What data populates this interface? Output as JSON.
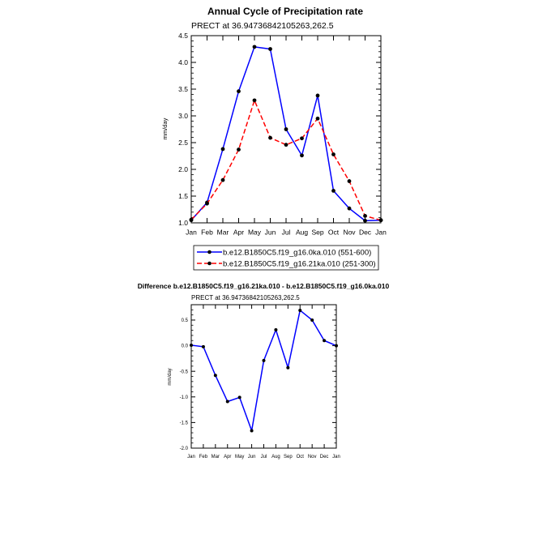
{
  "chart_data": [
    {
      "type": "line",
      "title": "Annual Cycle of Precipitation rate",
      "subtitle": "PRECT at 36.94736842105263,262.5",
      "xlabel": "",
      "ylabel": "mm/day",
      "categories": [
        "Jan",
        "Feb",
        "Mar",
        "Apr",
        "May",
        "Jun",
        "Jul",
        "Aug",
        "Sep",
        "Oct",
        "Nov",
        "Dec",
        "Jan"
      ],
      "ylim": [
        1.0,
        4.5
      ],
      "yticks": [
        "1.0",
        "1.5",
        "2.0",
        "2.5",
        "3.0",
        "3.5",
        "4.0",
        "4.5"
      ],
      "grid": false,
      "legend_position": "bottom",
      "series": [
        {
          "name": "b.e12.B1850C5.f19_g16.0ka.010 (551-600)",
          "color": "#0000ff",
          "dash": "solid",
          "marker_color": "#000000",
          "values": [
            1.05,
            1.38,
            2.38,
            3.46,
            4.29,
            4.25,
            2.75,
            2.26,
            3.38,
            1.6,
            1.27,
            1.04,
            1.05
          ]
        },
        {
          "name": "b.e12.B1850C5.f19_g16.21ka.010 (251-300)",
          "color": "#ff0000",
          "dash": "dashed",
          "marker_color": "#000000",
          "values": [
            1.06,
            1.36,
            1.8,
            2.37,
            3.29,
            2.59,
            2.46,
            2.58,
            2.95,
            2.28,
            1.78,
            1.13,
            1.05
          ]
        }
      ]
    },
    {
      "type": "line",
      "title": "Difference b.e12.B1850C5.f19_g16.21ka.010 - b.e12.B1850C5.f19_g16.0ka.010",
      "subtitle": "PRECT at 36.94736842105263,262.5",
      "xlabel": "",
      "ylabel": "mm/day",
      "categories": [
        "Jan",
        "Feb",
        "Mar",
        "Apr",
        "May",
        "Jun",
        "Jul",
        "Aug",
        "Sep",
        "Oct",
        "Nov",
        "Dec",
        "Jan"
      ],
      "ylim": [
        -2.0,
        0.8
      ],
      "yticks": [
        "-2.0",
        "-1.5",
        "-1.0",
        "-0.5",
        "0.0",
        "0.5"
      ],
      "grid": false,
      "series": [
        {
          "color": "#0000ff",
          "dash": "solid",
          "marker_color": "#000000",
          "values": [
            0.01,
            -0.02,
            -0.58,
            -1.09,
            -1.01,
            -1.66,
            -0.29,
            0.31,
            -0.43,
            0.69,
            0.5,
            0.1,
            0.0
          ]
        }
      ]
    }
  ]
}
